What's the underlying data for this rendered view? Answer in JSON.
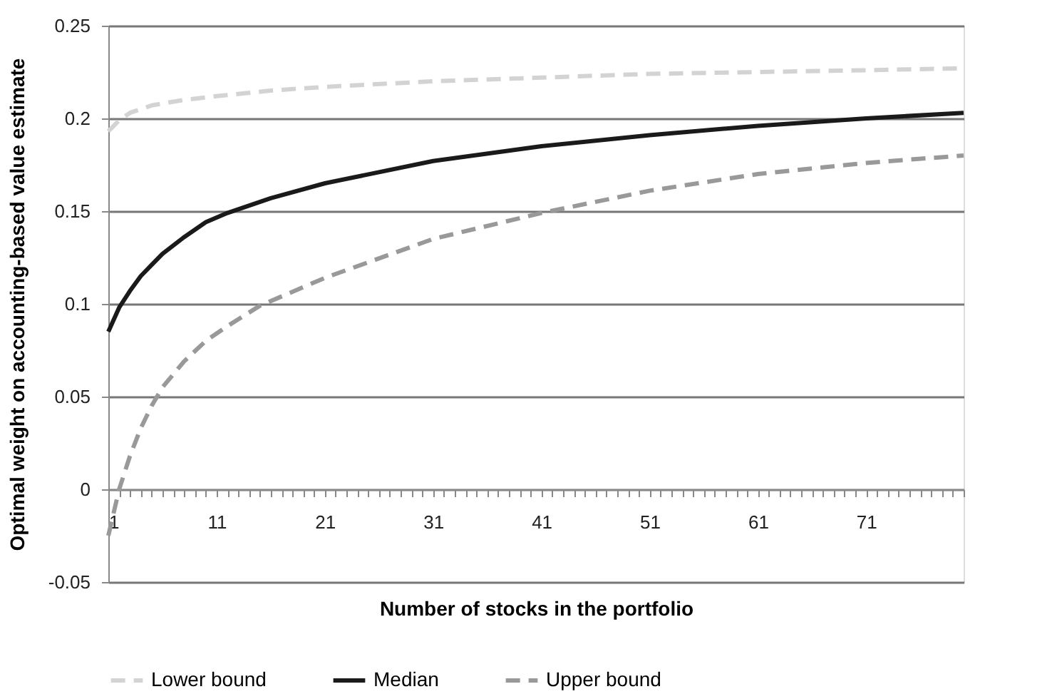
{
  "chart_data": {
    "type": "line",
    "xlabel": "Number of stocks in the portfolio",
    "ylabel": "Optimal weight on accounting-based value estimate",
    "xlim": [
      1,
      80
    ],
    "ylim": [
      -0.05,
      0.25
    ],
    "yticks": [
      -0.05,
      0,
      0.05,
      0.1,
      0.15,
      0.2,
      0.25
    ],
    "xticks": [
      1,
      {
        "value": 2,
        "label": null
      },
      {
        "value": 3,
        "label": null
      },
      {
        "value": 4,
        "label": null
      },
      {
        "value": 5,
        "label": null
      },
      {
        "value": 6,
        "label": null
      },
      {
        "value": 7,
        "label": null
      },
      {
        "value": 8,
        "label": null
      },
      {
        "value": 9,
        "label": null
      },
      {
        "value": 10,
        "label": null
      },
      11,
      {
        "value": 12,
        "label": null
      },
      {
        "value": 13,
        "label": null
      },
      {
        "value": 14,
        "label": null
      },
      {
        "value": 15,
        "label": null
      },
      {
        "value": 16,
        "label": null
      },
      {
        "value": 17,
        "label": null
      },
      {
        "value": 18,
        "label": null
      },
      {
        "value": 19,
        "label": null
      },
      {
        "value": 20,
        "label": null
      },
      21,
      {
        "value": 22,
        "label": null
      },
      {
        "value": 23,
        "label": null
      },
      {
        "value": 24,
        "label": null
      },
      {
        "value": 25,
        "label": null
      },
      {
        "value": 26,
        "label": null
      },
      {
        "value": 27,
        "label": null
      },
      {
        "value": 28,
        "label": null
      },
      {
        "value": 29,
        "label": null
      },
      {
        "value": 30,
        "label": null
      },
      31,
      {
        "value": 32,
        "label": null
      },
      {
        "value": 33,
        "label": null
      },
      {
        "value": 34,
        "label": null
      },
      {
        "value": 35,
        "label": null
      },
      {
        "value": 36,
        "label": null
      },
      {
        "value": 37,
        "label": null
      },
      {
        "value": 38,
        "label": null
      },
      {
        "value": 39,
        "label": null
      },
      {
        "value": 40,
        "label": null
      },
      41,
      {
        "value": 42,
        "label": null
      },
      {
        "value": 43,
        "label": null
      },
      {
        "value": 44,
        "label": null
      },
      {
        "value": 45,
        "label": null
      },
      {
        "value": 46,
        "label": null
      },
      {
        "value": 47,
        "label": null
      },
      {
        "value": 48,
        "label": null
      },
      {
        "value": 49,
        "label": null
      },
      {
        "value": 50,
        "label": null
      },
      51,
      {
        "value": 52,
        "label": null
      },
      {
        "value": 53,
        "label": null
      },
      {
        "value": 54,
        "label": null
      },
      {
        "value": 55,
        "label": null
      },
      {
        "value": 56,
        "label": null
      },
      {
        "value": 57,
        "label": null
      },
      {
        "value": 58,
        "label": null
      },
      {
        "value": 59,
        "label": null
      },
      {
        "value": 60,
        "label": null
      },
      61,
      {
        "value": 62,
        "label": null
      },
      {
        "value": 63,
        "label": null
      },
      {
        "value": 64,
        "label": null
      },
      {
        "value": 65,
        "label": null
      },
      {
        "value": 66,
        "label": null
      },
      {
        "value": 67,
        "label": null
      },
      {
        "value": 68,
        "label": null
      },
      {
        "value": 69,
        "label": null
      },
      {
        "value": 70,
        "label": null
      },
      71,
      {
        "value": 72,
        "label": null
      },
      {
        "value": 73,
        "label": null
      },
      {
        "value": 74,
        "label": null
      },
      {
        "value": 75,
        "label": null
      },
      {
        "value": 76,
        "label": null
      },
      {
        "value": 77,
        "label": null
      },
      {
        "value": 78,
        "label": null
      },
      {
        "value": 79,
        "label": null
      },
      {
        "value": 80,
        "label": null
      }
    ],
    "grid": "y",
    "legend": "bottom",
    "series": [
      {
        "name": "Lower bound",
        "color": "#d3d3d3",
        "line_style": "dashed",
        "x": [
          1,
          2,
          3,
          5,
          8,
          11,
          16,
          21,
          31,
          41,
          51,
          61,
          71,
          80
        ],
        "values": [
          0.193,
          0.199,
          0.203,
          0.207,
          0.21,
          0.212,
          0.215,
          0.217,
          0.22,
          0.222,
          0.224,
          0.225,
          0.226,
          0.227
        ]
      },
      {
        "name": "Median",
        "color": "#1a1a1a",
        "line_style": "solid",
        "x": [
          1,
          2,
          3,
          4,
          5,
          6,
          8,
          10,
          12,
          16,
          21,
          31,
          41,
          51,
          61,
          71,
          80
        ],
        "values": [
          0.085,
          0.098,
          0.107,
          0.115,
          0.121,
          0.127,
          0.136,
          0.144,
          0.149,
          0.157,
          0.165,
          0.177,
          0.185,
          0.191,
          0.196,
          0.2,
          0.203
        ]
      },
      {
        "name": "Upper bound",
        "color": "#999999",
        "line_style": "dashed",
        "x": [
          1,
          2,
          3,
          4,
          5,
          6,
          8,
          10,
          12,
          15,
          21,
          31,
          41,
          51,
          61,
          71,
          80
        ],
        "values": [
          -0.025,
          0.0,
          0.018,
          0.033,
          0.045,
          0.055,
          0.069,
          0.08,
          0.088,
          0.099,
          0.114,
          0.135,
          0.149,
          0.161,
          0.17,
          0.176,
          0.18
        ]
      }
    ]
  }
}
